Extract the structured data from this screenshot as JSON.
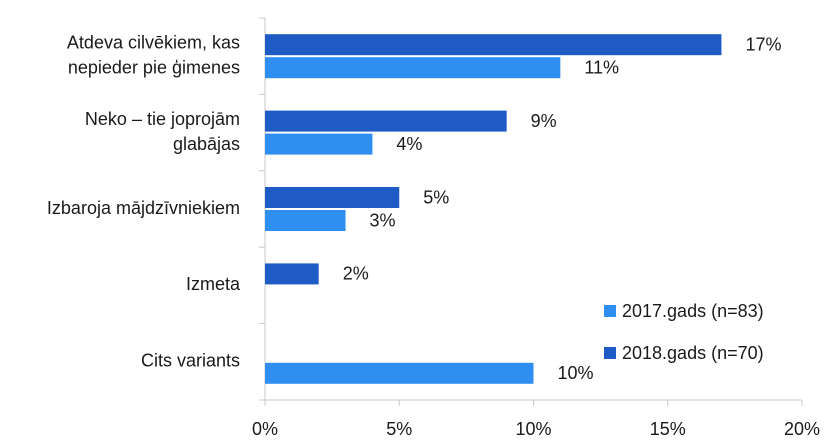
{
  "chart_data": {
    "type": "hbar",
    "categories": [
      [
        "Atdeva cilvēkiem, kas",
        "nepieder pie ģimenes"
      ],
      [
        "Neko – tie joprojām",
        "glabājas"
      ],
      [
        "Izbaroja mājdzīvniekiem"
      ],
      [
        "Izmeta"
      ],
      [
        "Cits variants"
      ]
    ],
    "series": [
      {
        "name": "2018.gads (n=70)",
        "color": "#1f5bc4",
        "values": [
          17,
          9,
          5,
          2,
          null
        ],
        "value_labels": [
          "17%",
          "9%",
          "5%",
          "2%",
          null
        ]
      },
      {
        "name": "2017.gads (n=83)",
        "color": "#2e8ff0",
        "values": [
          11,
          4,
          3,
          null,
          10
        ],
        "value_labels": [
          "11%",
          "4%",
          "3%",
          null,
          "10%"
        ]
      }
    ],
    "legend_order": [
      1,
      0
    ],
    "xlim": [
      0,
      20
    ],
    "xticks": [
      {
        "value": 0,
        "label": "0%"
      },
      {
        "value": 5,
        "label": "5%"
      },
      {
        "value": 10,
        "label": "10%"
      },
      {
        "value": 15,
        "label": "15%"
      },
      {
        "value": 20,
        "label": "20%"
      }
    ],
    "legend": "lower right",
    "grid": false
  }
}
